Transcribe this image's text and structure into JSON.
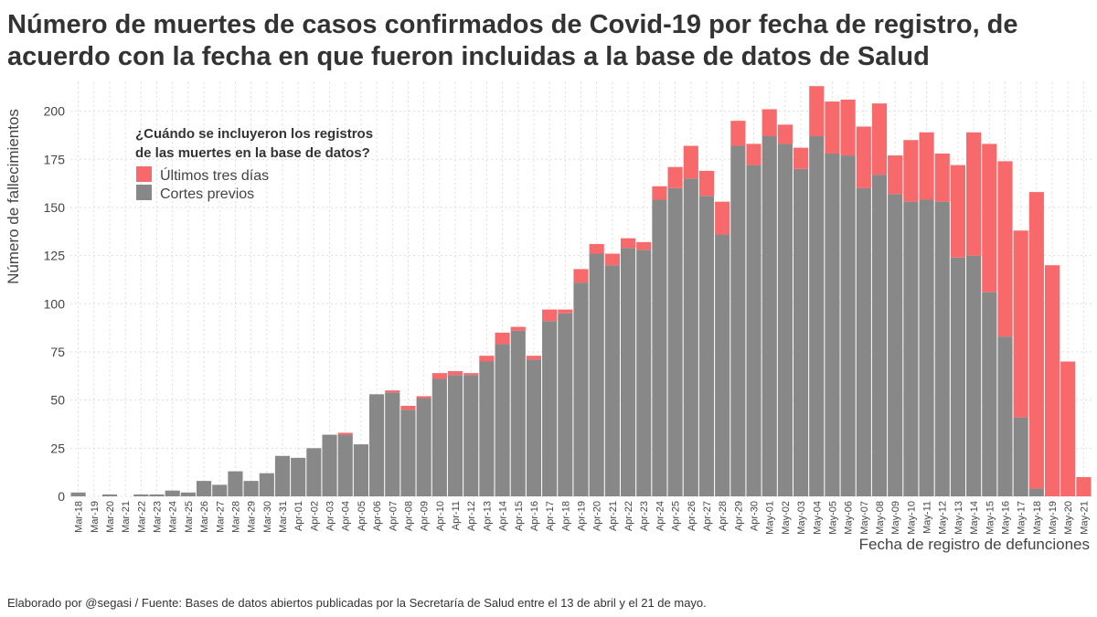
{
  "title": "Número de muertes de casos confirmados de Covid-19 por fecha de registro, de acuerdo con la fecha en que fueron incluidas a la base de datos de Salud",
  "caption": "Elaborado por @segasi / Fuente: Bases de datos abiertos publicadas por la Secretaría de Salud entre el 13 de abril y el 21 de mayo.",
  "colors": {
    "previous": "#888888",
    "recent": "#F8696B",
    "grid": "#dedede"
  },
  "chart_data": {
    "type": "bar",
    "stacked": true,
    "ylabel": "Número de fallecimientos",
    "xlabel": "Fecha de registro de defunciones",
    "ylim": [
      0,
      215
    ],
    "yticks": [
      0,
      25,
      50,
      75,
      100,
      125,
      150,
      175,
      200
    ],
    "grid": true,
    "legend": {
      "title_line1": "¿Cuándo se incluyeron los registros",
      "title_line2": "de las muertes en la base de datos?",
      "entries": [
        "Últimos tres días",
        "Cortes previos"
      ],
      "position": "top-left"
    },
    "categories": [
      "Mar-18",
      "Mar-19",
      "Mar-20",
      "Mar-21",
      "Mar-22",
      "Mar-23",
      "Mar-24",
      "Mar-25",
      "Mar-26",
      "Mar-27",
      "Mar-28",
      "Mar-29",
      "Mar-30",
      "Mar-31",
      "Apr-01",
      "Apr-02",
      "Apr-03",
      "Apr-04",
      "Apr-05",
      "Apr-06",
      "Apr-07",
      "Apr-08",
      "Apr-09",
      "Apr-10",
      "Apr-11",
      "Apr-12",
      "Apr-13",
      "Apr-14",
      "Apr-15",
      "Apr-16",
      "Apr-17",
      "Apr-18",
      "Apr-19",
      "Apr-20",
      "Apr-21",
      "Apr-22",
      "Apr-23",
      "Apr-24",
      "Apr-25",
      "Apr-26",
      "Apr-27",
      "Apr-28",
      "Apr-29",
      "Apr-30",
      "May-01",
      "May-02",
      "May-03",
      "May-04",
      "May-05",
      "May-06",
      "May-07",
      "May-08",
      "May-09",
      "May-10",
      "May-11",
      "May-12",
      "May-13",
      "May-14",
      "May-15",
      "May-16",
      "May-17",
      "May-18",
      "May-19",
      "May-20",
      "May-21"
    ],
    "series": [
      {
        "name": "Cortes previos",
        "values": [
          2,
          0,
          1,
          0,
          1,
          1,
          3,
          2,
          8,
          6,
          13,
          8,
          12,
          21,
          20,
          25,
          32,
          32,
          27,
          53,
          54,
          45,
          51,
          61,
          63,
          63,
          70,
          79,
          86,
          71,
          91,
          95,
          111,
          126,
          120,
          129,
          128,
          154,
          160,
          165,
          156,
          136,
          182,
          172,
          187,
          183,
          170,
          187,
          178,
          177,
          160,
          167,
          157,
          153,
          154,
          153,
          124,
          125,
          106,
          83,
          41,
          4,
          0,
          0,
          0
        ]
      },
      {
        "name": "Últimos tres días",
        "values": [
          0,
          0,
          0,
          0,
          0,
          0,
          0,
          0,
          0,
          0,
          0,
          0,
          0,
          0,
          0,
          0,
          0,
          1,
          0,
          0,
          1,
          2,
          1,
          3,
          2,
          1,
          3,
          6,
          2,
          2,
          6,
          2,
          7,
          5,
          6,
          5,
          4,
          7,
          11,
          17,
          13,
          17,
          13,
          11,
          14,
          10,
          11,
          26,
          27,
          29,
          32,
          37,
          20,
          32,
          35,
          25,
          48,
          64,
          77,
          91,
          97,
          154,
          120,
          70,
          10
        ]
      }
    ]
  }
}
